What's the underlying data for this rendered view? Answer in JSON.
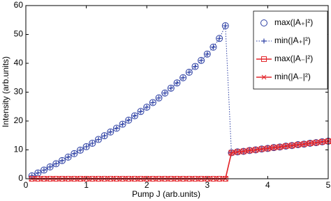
{
  "chart_data": {
    "type": "line",
    "x_label": "Pump J (arb.units)",
    "y_label": "Intensity (arb.units)",
    "x": [
      0.1,
      0.2,
      0.3,
      0.4,
      0.5,
      0.6,
      0.7,
      0.8,
      0.9,
      1.0,
      1.1,
      1.2,
      1.3,
      1.4,
      1.5,
      1.6,
      1.7,
      1.8,
      1.9,
      2.0,
      2.1,
      2.2,
      2.3,
      2.4,
      2.5,
      2.6,
      2.7,
      2.8,
      2.9,
      3.0,
      3.1,
      3.2,
      3.3,
      3.4,
      3.5,
      3.6,
      3.7,
      3.8,
      3.9,
      4.0,
      4.1,
      4.2,
      4.3,
      4.4,
      4.5,
      4.6,
      4.7,
      4.8,
      4.9,
      5.0
    ],
    "series": [
      {
        "name": "max(|A₊|²)",
        "color": "#2b3ea3",
        "marker": "circle",
        "line": "none",
        "values": [
          1.0,
          2.0,
          3.0,
          4.1,
          5.2,
          6.3,
          7.5,
          8.7,
          9.9,
          11.1,
          12.3,
          13.6,
          14.9,
          16.2,
          17.5,
          18.9,
          20.3,
          21.8,
          23.3,
          24.8,
          26.4,
          28.0,
          29.7,
          31.4,
          33.2,
          35.0,
          36.9,
          38.9,
          41.0,
          43.2,
          45.6,
          48.6,
          53.0,
          9.0,
          9.3,
          9.5,
          9.8,
          10.0,
          10.3,
          10.5,
          10.8,
          11.0,
          11.3,
          11.5,
          11.8,
          12.0,
          12.3,
          12.5,
          12.8,
          13.0
        ]
      },
      {
        "name": "min(|A₊|²)",
        "color": "#2b3ea3",
        "marker": "plus",
        "line": "dotted",
        "values": [
          1.0,
          2.0,
          3.0,
          4.1,
          5.2,
          6.3,
          7.5,
          8.7,
          9.9,
          11.1,
          12.3,
          13.6,
          14.9,
          16.2,
          17.5,
          18.9,
          20.3,
          21.8,
          23.3,
          24.8,
          26.4,
          28.0,
          29.7,
          31.4,
          33.2,
          35.0,
          36.9,
          38.9,
          41.0,
          43.2,
          45.6,
          48.6,
          53.0,
          9.0,
          9.3,
          9.5,
          9.8,
          10.0,
          10.3,
          10.5,
          10.8,
          11.0,
          11.3,
          11.5,
          11.8,
          12.0,
          12.3,
          12.5,
          12.8,
          13.0
        ]
      },
      {
        "name": "max(|A₋|²)",
        "color": "#e3262b",
        "marker": "square",
        "line": "solid",
        "values": [
          0,
          0,
          0,
          0,
          0,
          0,
          0,
          0,
          0,
          0,
          0,
          0,
          0,
          0,
          0,
          0,
          0,
          0,
          0,
          0,
          0,
          0,
          0,
          0,
          0,
          0,
          0,
          0,
          0,
          0,
          0,
          0,
          0,
          9.0,
          9.3,
          9.5,
          9.8,
          10.0,
          10.3,
          10.5,
          10.8,
          11.0,
          11.3,
          11.5,
          11.8,
          12.0,
          12.3,
          12.5,
          12.8,
          13.0
        ]
      },
      {
        "name": "min(|A₋|²)",
        "color": "#e3262b",
        "marker": "x",
        "line": "solid",
        "values": [
          0,
          0,
          0,
          0,
          0,
          0,
          0,
          0,
          0,
          0,
          0,
          0,
          0,
          0,
          0,
          0,
          0,
          0,
          0,
          0,
          0,
          0,
          0,
          0,
          0,
          0,
          0,
          0,
          0,
          0,
          0,
          0,
          0,
          9.0,
          9.3,
          9.5,
          9.8,
          10.0,
          10.3,
          10.5,
          10.8,
          11.0,
          11.3,
          11.5,
          11.8,
          12.0,
          12.3,
          12.5,
          12.8,
          13.0
        ]
      }
    ],
    "xlim": [
      0,
      5
    ],
    "xticks": [
      0,
      1,
      2,
      3,
      4,
      5
    ],
    "ylim": [
      0,
      60
    ],
    "yticks": [
      0,
      10,
      20,
      30,
      40,
      50,
      60
    ],
    "grid": false,
    "legend": "upper right"
  }
}
